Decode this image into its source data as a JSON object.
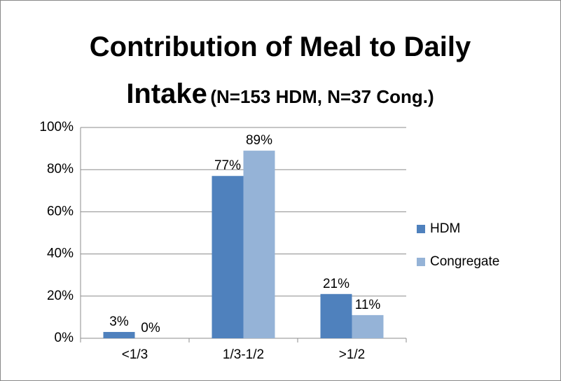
{
  "chart_data": {
    "type": "bar",
    "title": "Contribution of Meal to Daily Intake",
    "subtitle": "(N=153 HDM, N=37 Cong.)",
    "categories": [
      "<1/3",
      "1/3-1/2",
      ">1/2"
    ],
    "series": [
      {
        "name": "HDM",
        "color": "#4f81bd",
        "values": [
          3,
          77,
          21
        ],
        "value_labels": [
          "3%",
          "77%",
          "21%"
        ]
      },
      {
        "name": "Congregate",
        "color": "#95b3d7",
        "values": [
          0,
          89,
          11
        ],
        "value_labels": [
          "0%",
          "89%",
          "11%"
        ]
      }
    ],
    "ylim": [
      0,
      100
    ],
    "yticks": [
      {
        "value": 0,
        "label": "0%"
      },
      {
        "value": 20,
        "label": "20%"
      },
      {
        "value": 40,
        "label": "40%"
      },
      {
        "value": 60,
        "label": "60%"
      },
      {
        "value": 80,
        "label": "80%"
      },
      {
        "value": 100,
        "label": "100%"
      }
    ],
    "grid": true,
    "legend": "right"
  }
}
